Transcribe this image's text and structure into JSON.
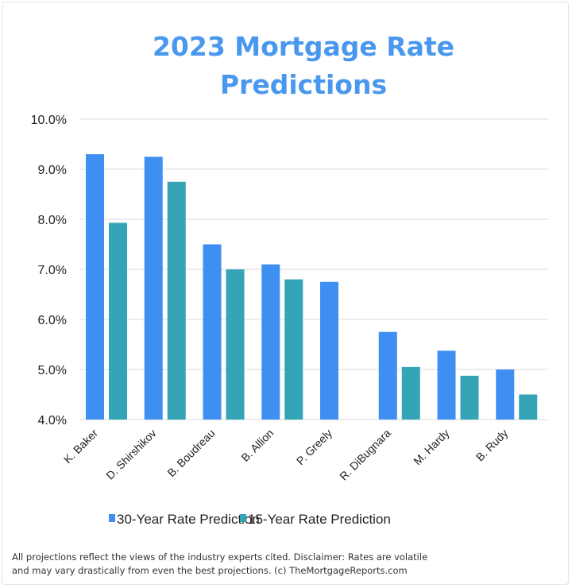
{
  "chart_data": {
    "type": "bar",
    "title_lines": [
      "2023 Mortgage Rate",
      "Predictions"
    ],
    "categories": [
      "K. Baker",
      "D. Shirshikov",
      "B. Boudreau",
      "B. Allion",
      "P. Greely",
      "R. DiBugnara",
      "M. Hardy",
      "B. Rudy"
    ],
    "series": [
      {
        "name": "30-Year Rate Prediction",
        "color": "#3f8ff3",
        "values": [
          9.3,
          9.25,
          7.5,
          7.1,
          6.75,
          5.75,
          5.375,
          5.0
        ]
      },
      {
        "name": "15-Year Rate Prediction",
        "color": "#35a4b6",
        "values": [
          7.93,
          8.75,
          7.0,
          6.8,
          null,
          5.05,
          4.875,
          4.5
        ]
      }
    ],
    "ylim": [
      4.0,
      10.0
    ],
    "yticks": [
      "4.0%",
      "5.0%",
      "6.0%",
      "7.0%",
      "8.0%",
      "9.0%",
      "10.0%"
    ],
    "grid": true,
    "legend_position": "bottom",
    "xlabel": "",
    "ylabel": ""
  },
  "footer": {
    "line1": "All projections reflect the views of the industry experts cited. Disclaimer: Rates are volatile",
    "line2": "and may vary drastically from even the best projections.  (c) TheMortgageReports.com"
  }
}
